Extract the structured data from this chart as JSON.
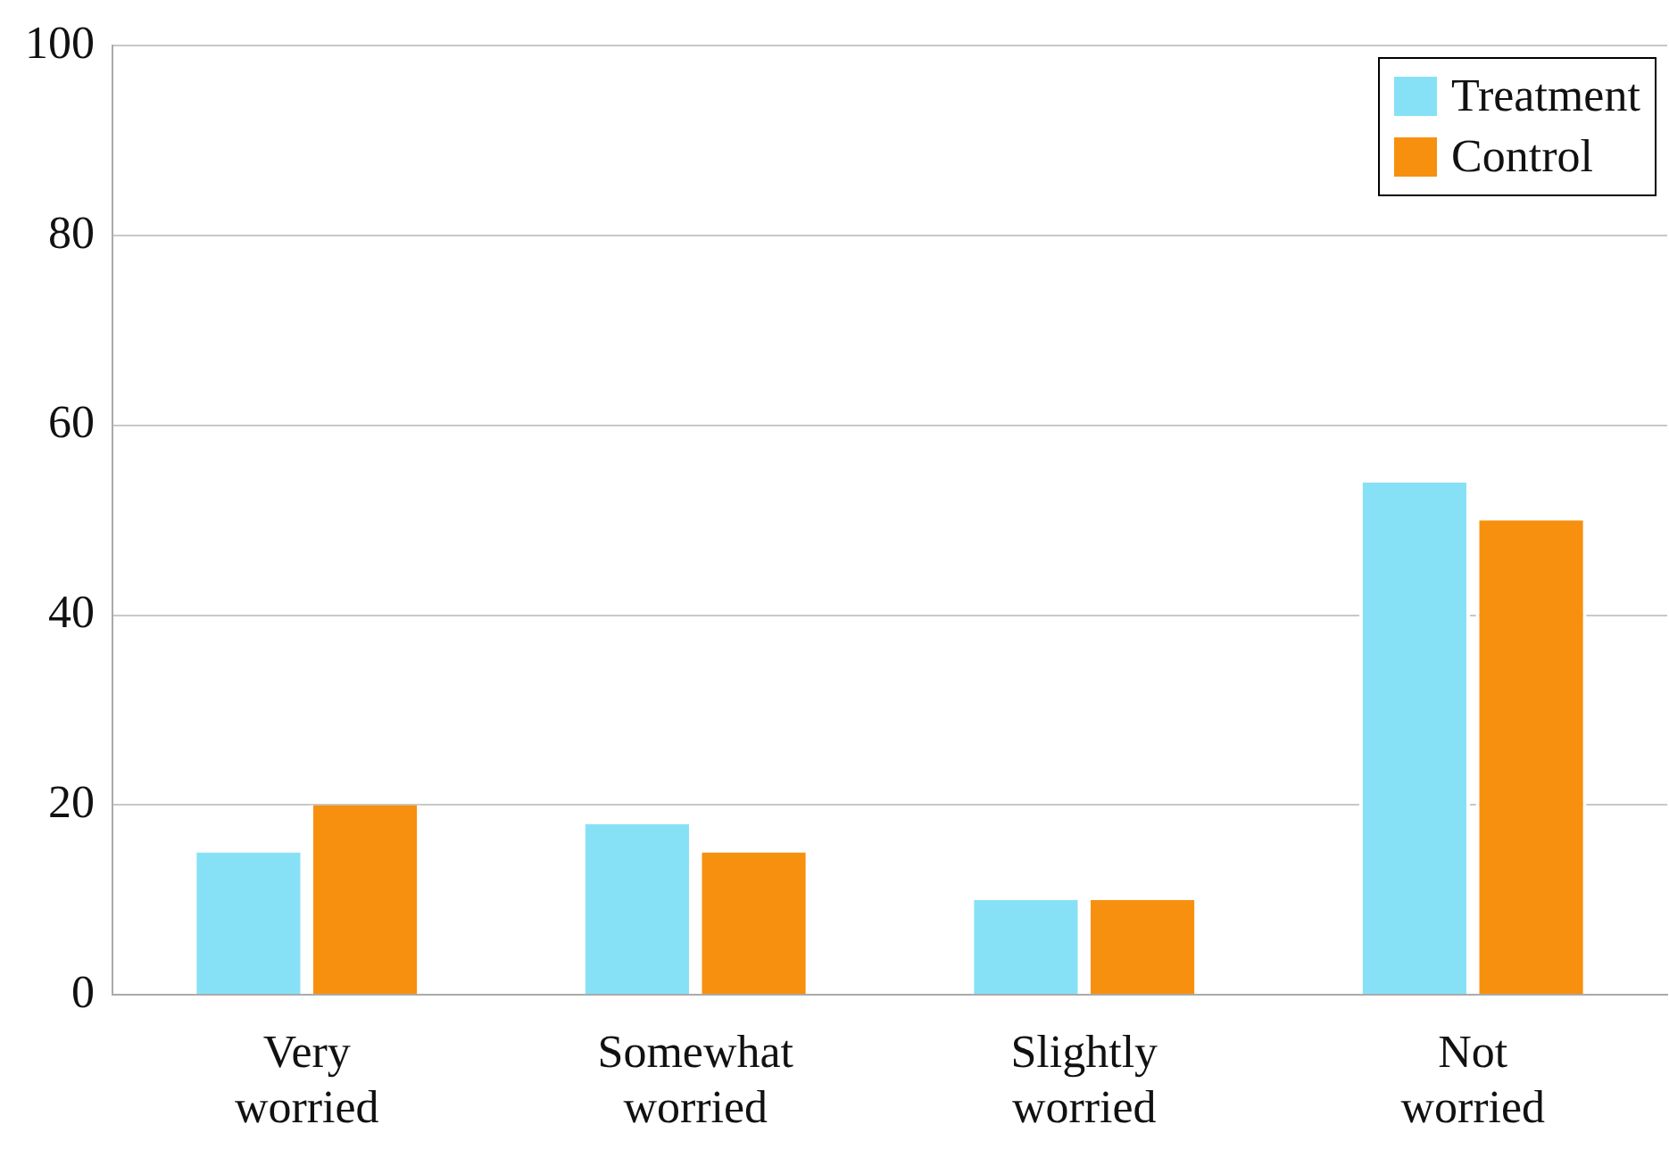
{
  "chart_data": {
    "type": "bar",
    "categories": [
      "Very worried",
      "Somewhat worried",
      "Slightly worried",
      "Not worried"
    ],
    "series": [
      {
        "name": "Treatment",
        "color": "#87e1f6",
        "values": [
          15,
          18,
          10,
          54
        ]
      },
      {
        "name": "Control",
        "color": "#f7900f",
        "values": [
          20,
          15,
          10,
          50
        ]
      }
    ],
    "ylim": [
      0,
      100
    ],
    "yticks": [
      0,
      20,
      40,
      60,
      80,
      100
    ],
    "grid": "y",
    "legend": "top right"
  }
}
